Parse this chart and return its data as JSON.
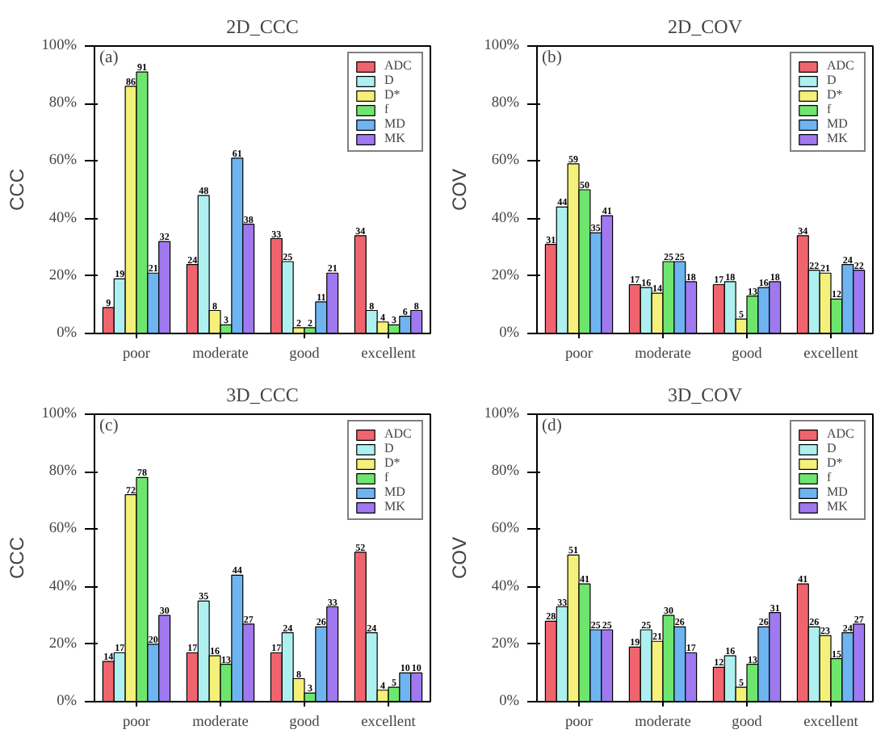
{
  "chart_data": [
    {
      "type": "bar",
      "title": "2D_CCC",
      "ylabel": "CCC",
      "annotations": [
        "(a)"
      ],
      "categories": [
        "poor",
        "moderate",
        "good",
        "excellent"
      ],
      "ylim": [
        0,
        100
      ],
      "yticks": [
        {
          "value": 0,
          "label": "0%"
        },
        {
          "value": 20,
          "label": "20%"
        },
        {
          "value": 40,
          "label": "40%"
        },
        {
          "value": 60,
          "label": "60%"
        },
        {
          "value": 80,
          "label": "80%"
        },
        {
          "value": 100,
          "label": "100%"
        }
      ],
      "grid": false,
      "legend": "top right",
      "data_labels": true,
      "series": [
        {
          "name": "ADC",
          "color": "#f0646e",
          "values": [
            9,
            24,
            33,
            34
          ]
        },
        {
          "name": "D",
          "color": "#aef0f0",
          "values": [
            19,
            48,
            25,
            8
          ]
        },
        {
          "name": "D*",
          "color": "#f5f07a",
          "values": [
            86,
            8,
            2,
            4
          ]
        },
        {
          "name": "f",
          "color": "#6ee66e",
          "values": [
            91,
            3,
            2,
            3
          ]
        },
        {
          "name": "MD",
          "color": "#6eb4f0",
          "values": [
            21,
            61,
            11,
            6
          ]
        },
        {
          "name": "MK",
          "color": "#a078f0",
          "values": [
            32,
            38,
            21,
            8
          ]
        }
      ]
    },
    {
      "type": "bar",
      "title": "2D_COV",
      "ylabel": "COV",
      "annotations": [
        "(b)"
      ],
      "categories": [
        "poor",
        "moderate",
        "good",
        "excellent"
      ],
      "ylim": [
        0,
        100
      ],
      "yticks": [
        {
          "value": 0,
          "label": "0%"
        },
        {
          "value": 20,
          "label": "20%"
        },
        {
          "value": 40,
          "label": "40%"
        },
        {
          "value": 60,
          "label": "60%"
        },
        {
          "value": 80,
          "label": "80%"
        },
        {
          "value": 100,
          "label": "100%"
        }
      ],
      "grid": false,
      "legend": "top right",
      "data_labels": true,
      "series": [
        {
          "name": "ADC",
          "color": "#f0646e",
          "values": [
            31,
            17,
            17,
            34
          ]
        },
        {
          "name": "D",
          "color": "#aef0f0",
          "values": [
            44,
            16,
            18,
            22
          ]
        },
        {
          "name": "D*",
          "color": "#f5f07a",
          "values": [
            59,
            14,
            5,
            21
          ]
        },
        {
          "name": "f",
          "color": "#6ee66e",
          "values": [
            50,
            25,
            13,
            12
          ]
        },
        {
          "name": "MD",
          "color": "#6eb4f0",
          "values": [
            35,
            25,
            16,
            24
          ]
        },
        {
          "name": "MK",
          "color": "#a078f0",
          "values": [
            41,
            18,
            18,
            22
          ]
        }
      ]
    },
    {
      "type": "bar",
      "title": "3D_CCC",
      "ylabel": "CCC",
      "annotations": [
        "(c)"
      ],
      "categories": [
        "poor",
        "moderate",
        "good",
        "excellent"
      ],
      "ylim": [
        0,
        100
      ],
      "yticks": [
        {
          "value": 0,
          "label": "0%"
        },
        {
          "value": 20,
          "label": "20%"
        },
        {
          "value": 40,
          "label": "40%"
        },
        {
          "value": 60,
          "label": "60%"
        },
        {
          "value": 80,
          "label": "80%"
        },
        {
          "value": 100,
          "label": "100%"
        }
      ],
      "grid": false,
      "legend": "top right",
      "data_labels": true,
      "series": [
        {
          "name": "ADC",
          "color": "#f0646e",
          "values": [
            14,
            17,
            17,
            52
          ]
        },
        {
          "name": "D",
          "color": "#aef0f0",
          "values": [
            17,
            35,
            24,
            24
          ]
        },
        {
          "name": "D*",
          "color": "#f5f07a",
          "values": [
            72,
            16,
            8,
            4
          ]
        },
        {
          "name": "f",
          "color": "#6ee66e",
          "values": [
            78,
            13,
            3,
            5
          ]
        },
        {
          "name": "MD",
          "color": "#6eb4f0",
          "values": [
            20,
            44,
            26,
            10
          ]
        },
        {
          "name": "MK",
          "color": "#a078f0",
          "values": [
            30,
            27,
            33,
            10
          ]
        }
      ]
    },
    {
      "type": "bar",
      "title": "3D_COV",
      "ylabel": "COV",
      "annotations": [
        "(d)"
      ],
      "categories": [
        "poor",
        "moderate",
        "good",
        "excellent"
      ],
      "ylim": [
        0,
        100
      ],
      "yticks": [
        {
          "value": 0,
          "label": "0%"
        },
        {
          "value": 20,
          "label": "20%"
        },
        {
          "value": 40,
          "label": "40%"
        },
        {
          "value": 60,
          "label": "60%"
        },
        {
          "value": 80,
          "label": "80%"
        },
        {
          "value": 100,
          "label": "100%"
        }
      ],
      "grid": false,
      "legend": "top right",
      "data_labels": true,
      "series": [
        {
          "name": "ADC",
          "color": "#f0646e",
          "values": [
            28,
            19,
            12,
            41
          ]
        },
        {
          "name": "D",
          "color": "#aef0f0",
          "values": [
            33,
            25,
            16,
            26
          ]
        },
        {
          "name": "D*",
          "color": "#f5f07a",
          "values": [
            51,
            21,
            5,
            23
          ]
        },
        {
          "name": "f",
          "color": "#6ee66e",
          "values": [
            41,
            30,
            13,
            15
          ]
        },
        {
          "name": "MD",
          "color": "#6eb4f0",
          "values": [
            25,
            26,
            26,
            24
          ]
        },
        {
          "name": "MK",
          "color": "#a078f0",
          "values": [
            25,
            17,
            31,
            27
          ]
        }
      ]
    }
  ]
}
